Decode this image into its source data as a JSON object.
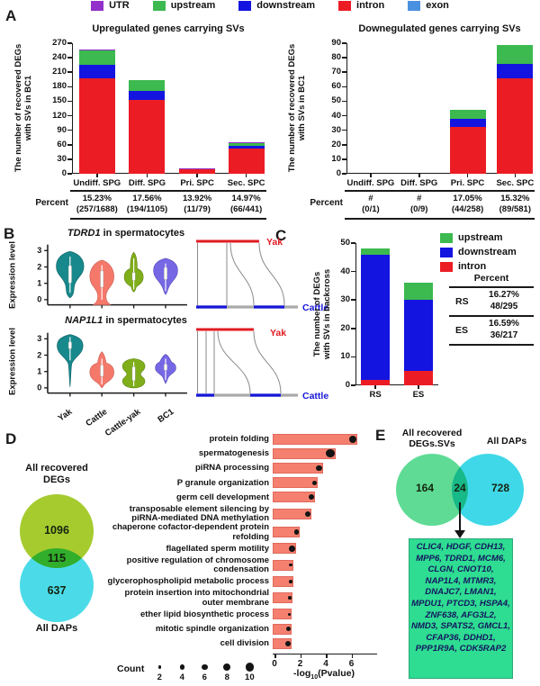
{
  "colors": {
    "utr": "#9330C9",
    "upstream": "#3CB94F",
    "downstream": "#1414E0",
    "intron": "#EC1C24",
    "exon": "#4A90E0",
    "go_bar": "#F5806F",
    "vennD_set1": "#A6CB2F",
    "vennD_set2": "#4BDBE8",
    "vennE_set1": "#5FDB95",
    "vennE_set2": "#3FD8E8",
    "gene_box": "#2EDC92",
    "yak_label": "#e11b22",
    "cattle_label": "#1616d8"
  },
  "panelA": {
    "label": "A",
    "legend": [
      {
        "label": "UTR",
        "color": "#9330C9"
      },
      {
        "label": "upstream",
        "color": "#3CB94F"
      },
      {
        "label": "downstream",
        "color": "#1414E0"
      },
      {
        "label": "intron",
        "color": "#EC1C24"
      },
      {
        "label": "exon",
        "color": "#4A90E0"
      }
    ],
    "left_title": "Upregulated genes carrying SVs",
    "right_title": "Downegulated genes carrying SVs",
    "ylabel_line1": "The number of recovered DEGs",
    "ylabel_line2": "with SVs in BC1",
    "percent_row_label": "Percent"
  },
  "panelB": {
    "label": "B",
    "plots": [
      {
        "gene": "TDRD1",
        "rest_label": " in spermatocytes"
      },
      {
        "gene": "NAP1L1",
        "rest_label": " in spermatocytes"
      }
    ],
    "ylabel": "Expression level",
    "yticks": [
      "0",
      "1",
      "2",
      "3"
    ],
    "categories": [
      "Yak",
      "Cattle",
      "Cattle-yak",
      "BC1"
    ],
    "violin_colors": [
      "#17898C",
      "#F4796B",
      "#7FAE1A",
      "#7667E4"
    ],
    "synteny": {
      "top_label": "Yak",
      "bottom_label": "Cattle"
    }
  },
  "panelC": {
    "label": "C",
    "ylabel_line1": "The number of DEGs",
    "ylabel_line2": "with SVs in backcross",
    "legend": [
      {
        "label": "upstream",
        "color": "#3CB94F"
      },
      {
        "label": "downstream",
        "color": "#1414E0"
      },
      {
        "label": "intron",
        "color": "#EC1C24"
      }
    ],
    "table": {
      "header": "Percent",
      "rows": [
        {
          "name": "RS",
          "pct": "16.27%",
          "frac": "48/295"
        },
        {
          "name": "ES",
          "pct": "16.59%",
          "frac": "36/217"
        }
      ]
    }
  },
  "panelD": {
    "label": "D",
    "venn": {
      "set1_line1": "All recovered",
      "set1_line2": "DEGs",
      "only1": "1096",
      "overlap": "115",
      "only2": "637",
      "set2": "All DAPs"
    },
    "count_label": "Count",
    "xlabel": {
      "prefix": "-log",
      "sub": "10",
      "suffix": "(Pvalue)"
    }
  },
  "panelE": {
    "label": "E",
    "venn": {
      "set1_line1": "All recovered",
      "set1_line2": "DEGs.SVs",
      "set2": "All DAPs",
      "only1": "164",
      "overlap": "24",
      "only2": "728"
    },
    "genes": [
      "CLIC4",
      "HDGF",
      "CDH13",
      "MPP6",
      "TDRD1",
      "MCM6",
      "CLGN",
      "CNOT10",
      "NAP1L4",
      "MTMR3",
      "DNAJC7",
      "LMAN1",
      "MPDU1",
      "PTCD3",
      "HSPA4",
      "ZNF638",
      "AFG3L2",
      "NMD3",
      "SPATS2",
      "GMCL1",
      "CFAP36",
      "DDHD1",
      "PPP1R9A",
      "CDK5RAP2"
    ]
  },
  "chart_data": [
    {
      "id": "A_left",
      "type": "bar",
      "stacked": true,
      "title": "Upregulated genes carrying SVs",
      "ylabel": "The number of recovered DEGs with SVs in BC1",
      "ylim": [
        0,
        270
      ],
      "ystep": 30,
      "categories": [
        "Undiff. SPG",
        "Diff. SPG",
        "Pri. SPC",
        "Sec. SPC"
      ],
      "series": [
        {
          "name": "intron",
          "color": "#EC1C24",
          "values": [
            197,
            152,
            10,
            52
          ]
        },
        {
          "name": "downstream",
          "color": "#1414E0",
          "values": [
            28,
            19,
            0,
            6
          ]
        },
        {
          "name": "upstream",
          "color": "#3CB94F",
          "values": [
            31,
            23,
            0,
            7
          ]
        },
        {
          "name": "UTR",
          "color": "#9330C9",
          "values": [
            1,
            0,
            1,
            1
          ]
        },
        {
          "name": "exon",
          "color": "#4A90E0",
          "values": [
            0,
            0,
            0,
            0
          ]
        }
      ],
      "totals": [
        257,
        194,
        11,
        66
      ],
      "percent": [
        {
          "pct": "15.23%",
          "frac": "(257/1688)"
        },
        {
          "pct": "17.56%",
          "frac": "(194/1105)"
        },
        {
          "pct": "13.92%",
          "frac": "(11/79)"
        },
        {
          "pct": "14.97%",
          "frac": "(66/441)"
        }
      ]
    },
    {
      "id": "A_right",
      "type": "bar",
      "stacked": true,
      "title": "Downegulated genes carrying SVs",
      "ylabel": "The number of recovered DEGs with SVs in BC1",
      "ylim": [
        0,
        90
      ],
      "ystep": 10,
      "categories": [
        "Undiff. SPG",
        "Diff. SPG",
        "Pri. SPC",
        "Sec. SPC"
      ],
      "series": [
        {
          "name": "intron",
          "color": "#EC1C24",
          "values": [
            0,
            0,
            32,
            66
          ]
        },
        {
          "name": "downstream",
          "color": "#1414E0",
          "values": [
            0,
            0,
            6,
            10
          ]
        },
        {
          "name": "upstream",
          "color": "#3CB94F",
          "values": [
            0,
            0,
            6,
            13
          ]
        },
        {
          "name": "UTR",
          "color": "#9330C9",
          "values": [
            0,
            0,
            0,
            0
          ]
        },
        {
          "name": "exon",
          "color": "#4A90E0",
          "values": [
            0,
            0,
            0,
            0
          ]
        }
      ],
      "totals": [
        0,
        0,
        44,
        89
      ],
      "percent": [
        {
          "pct": "#",
          "frac": "(0/1)"
        },
        {
          "pct": "#",
          "frac": "(0/9)"
        },
        {
          "pct": "17.05%",
          "frac": "(44/258)"
        },
        {
          "pct": "15.32%",
          "frac": "(89/581)"
        }
      ]
    },
    {
      "id": "B_TDRD1",
      "type": "violin",
      "title": "TDRD1 in spermatocytes",
      "ylabel": "Expression level",
      "yticks": [
        0,
        1,
        2,
        3
      ],
      "categories": [
        "Yak",
        "Cattle",
        "Cattle-yak",
        "BC1"
      ],
      "approx_median": [
        1.7,
        1.2,
        1.45,
        1.6
      ],
      "approx_range": [
        [
          0.1,
          2.9
        ],
        [
          -0.35,
          2.5
        ],
        [
          0.45,
          2.9
        ],
        [
          0.3,
          2.55
        ]
      ]
    },
    {
      "id": "B_NAP1L1",
      "type": "violin",
      "title": "NAP1L1 in spermatocytes",
      "ylabel": "Expression level",
      "yticks": [
        0,
        1,
        2,
        3
      ],
      "categories": [
        "Yak",
        "Cattle",
        "Cattle-yak",
        "BC1"
      ],
      "approx_median": [
        2.6,
        1.05,
        0.85,
        1.3
      ],
      "approx_range": [
        [
          0.0,
          3.3
        ],
        [
          0.0,
          2.2
        ],
        [
          0.0,
          1.8
        ],
        [
          0.25,
          2.05
        ]
      ]
    },
    {
      "id": "C",
      "type": "bar",
      "stacked": true,
      "ylabel": "The number of DEGs with SVs in backcross",
      "ylim": [
        0,
        50
      ],
      "ystep": 10,
      "categories": [
        "RS",
        "ES"
      ],
      "series": [
        {
          "name": "intron",
          "color": "#EC1C24",
          "values": [
            2,
            5
          ]
        },
        {
          "name": "downstream",
          "color": "#1414E0",
          "values": [
            44,
            25
          ]
        },
        {
          "name": "upstream",
          "color": "#3CB94F",
          "values": [
            2,
            6
          ]
        }
      ],
      "totals": [
        48,
        36
      ],
      "table": [
        {
          "name": "RS",
          "pct": "16.27%",
          "frac": "48/295"
        },
        {
          "name": "ES",
          "pct": "16.59%",
          "frac": "36/217"
        }
      ]
    },
    {
      "id": "D_venn",
      "type": "venn",
      "sets": [
        "All recovered DEGs",
        "All DAPs"
      ],
      "values": {
        "only_set1": 1096,
        "overlap": 115,
        "only_set2": 637
      }
    },
    {
      "id": "D_go",
      "type": "bar",
      "orientation": "horizontal",
      "xlabel": "-log10(Pvalue)",
      "xticks": [
        0,
        2,
        4,
        6
      ],
      "count_legend": [
        2,
        4,
        6,
        8,
        10
      ],
      "terms": [
        {
          "label_lines": [
            "protein folding"
          ],
          "pvalue": 6.6,
          "count": 8
        },
        {
          "label_lines": [
            "spermatogenesis"
          ],
          "pvalue": 4.9,
          "count": 10
        },
        {
          "label_lines": [
            "piRNA processing"
          ],
          "pvalue": 3.9,
          "count": 6
        },
        {
          "label_lines": [
            "P granule organization"
          ],
          "pvalue": 3.5,
          "count": 4
        },
        {
          "label_lines": [
            "germ cell development"
          ],
          "pvalue": 3.3,
          "count": 5
        },
        {
          "label_lines": [
            "transposable element silencing by",
            "piRNA-mediated DNA methylation"
          ],
          "pvalue": 3.0,
          "count": 5
        },
        {
          "label_lines": [
            "chaperone cofactor-dependent protein",
            "refolding"
          ],
          "pvalue": 2.1,
          "count": 4
        },
        {
          "label_lines": [
            "flagellated sperm motility"
          ],
          "pvalue": 1.8,
          "count": 6
        },
        {
          "label_lines": [
            "positive regulation of chromosome",
            "condensation"
          ],
          "pvalue": 1.6,
          "count": 2
        },
        {
          "label_lines": [
            "glycerophospholipid metabolic process"
          ],
          "pvalue": 1.6,
          "count": 2
        },
        {
          "label_lines": [
            "protein insertion into mitochondrial",
            "outer membrane"
          ],
          "pvalue": 1.55,
          "count": 2
        },
        {
          "label_lines": [
            "ether lipid biosynthetic process"
          ],
          "pvalue": 1.5,
          "count": 2
        },
        {
          "label_lines": [
            "mitotic spindle organization"
          ],
          "pvalue": 1.5,
          "count": 4
        },
        {
          "label_lines": [
            "cell division"
          ],
          "pvalue": 1.5,
          "count": 6
        }
      ]
    },
    {
      "id": "E_venn",
      "type": "venn",
      "sets": [
        "All recovered DEGs.SVs",
        "All DAPs"
      ],
      "values": {
        "only_set1": 164,
        "overlap": 24,
        "only_set2": 728
      }
    }
  ]
}
